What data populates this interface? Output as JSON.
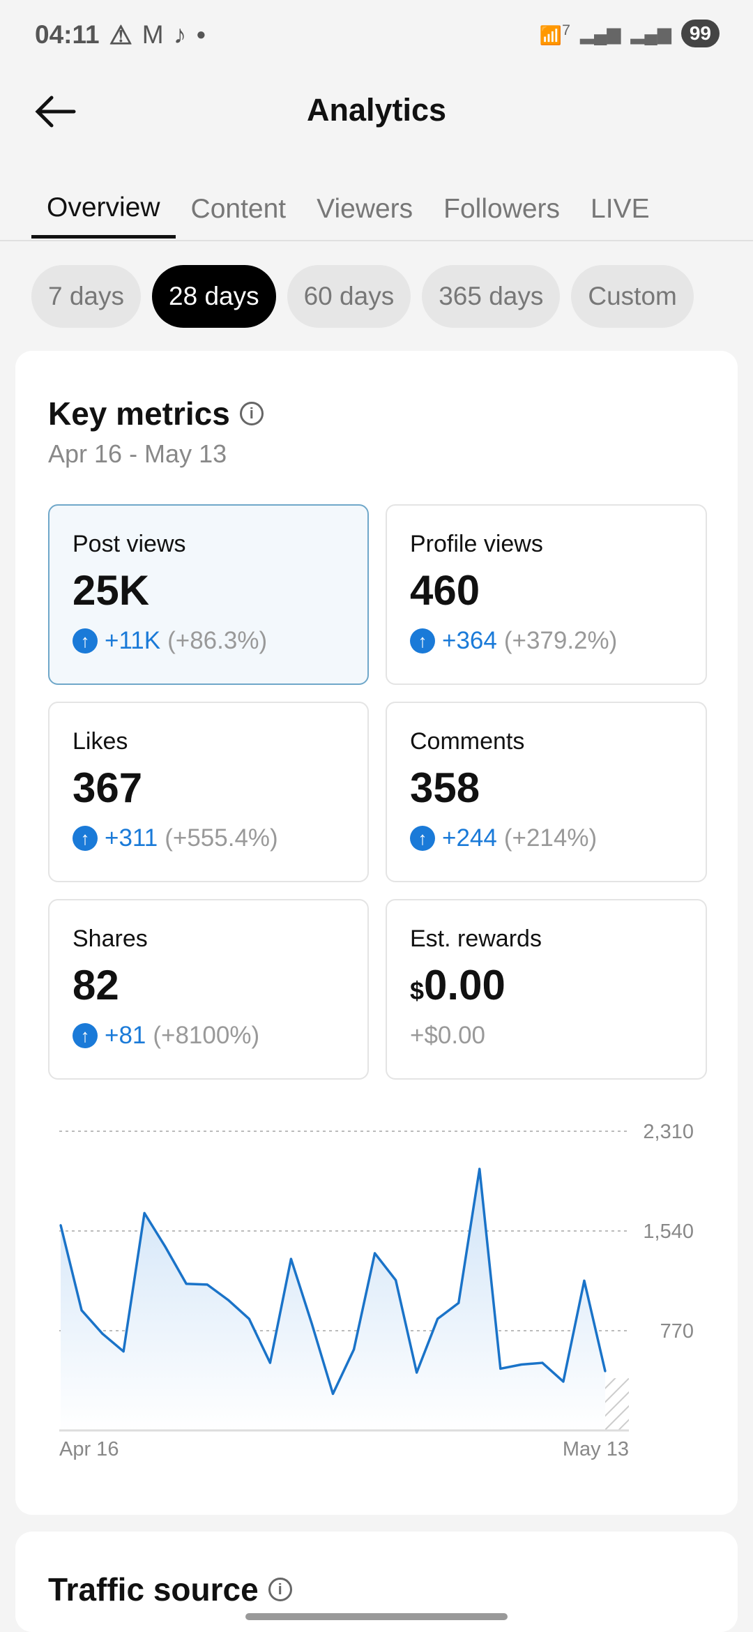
{
  "status_bar": {
    "time": "04:11",
    "battery": "99",
    "wifi_badge": "7",
    "icons": [
      "warning-icon",
      "gmail-icon",
      "tiktok-icon",
      "dot-icon",
      "wifi-icon",
      "signal-icon",
      "signal-icon"
    ]
  },
  "header": {
    "title": "Analytics"
  },
  "tabs": [
    {
      "label": "Overview",
      "active": true
    },
    {
      "label": "Content"
    },
    {
      "label": "Viewers"
    },
    {
      "label": "Followers"
    },
    {
      "label": "LIVE"
    }
  ],
  "ranges": [
    {
      "label": "7 days"
    },
    {
      "label": "28 days",
      "active": true
    },
    {
      "label": "60 days"
    },
    {
      "label": "365 days"
    },
    {
      "label": "Custom"
    }
  ],
  "key_metrics": {
    "title": "Key metrics",
    "date_range": "Apr 16 - May 13",
    "metrics": [
      {
        "label": "Post views",
        "value": "25K",
        "delta": "+11K",
        "pct": "(+86.3%)"
      },
      {
        "label": "Profile views",
        "value": "460",
        "delta": "+364",
        "pct": "(+379.2%)"
      },
      {
        "label": "Likes",
        "value": "367",
        "delta": "+311",
        "pct": "(+555.4%)"
      },
      {
        "label": "Comments",
        "value": "358",
        "delta": "+244",
        "pct": "(+214%)"
      },
      {
        "label": "Shares",
        "value": "82",
        "delta": "+81",
        "pct": "(+8100%)"
      },
      {
        "label": "Est. rewards",
        "currency": "$",
        "value": "0.00",
        "delta": "+$0.00"
      }
    ]
  },
  "chart_data": {
    "type": "area",
    "x_start": "Apr 16",
    "x_end": "May 13",
    "xtick_labels": [
      "Apr 16",
      "May 13"
    ],
    "ytick_labels": [
      "2,310",
      "1,540",
      "770"
    ],
    "ylim": [
      0,
      2310
    ],
    "grid": true,
    "color": "#1a73c8",
    "values": [
      1585,
      928,
      746,
      610,
      1678,
      1417,
      1132,
      1126,
      1007,
      861,
      522,
      1324,
      820,
      283,
      625,
      1368,
      1160,
      447,
      862,
      984,
      2019,
      477,
      509,
      522,
      377,
      1156,
      457
    ]
  },
  "traffic": {
    "title": "Traffic source"
  }
}
